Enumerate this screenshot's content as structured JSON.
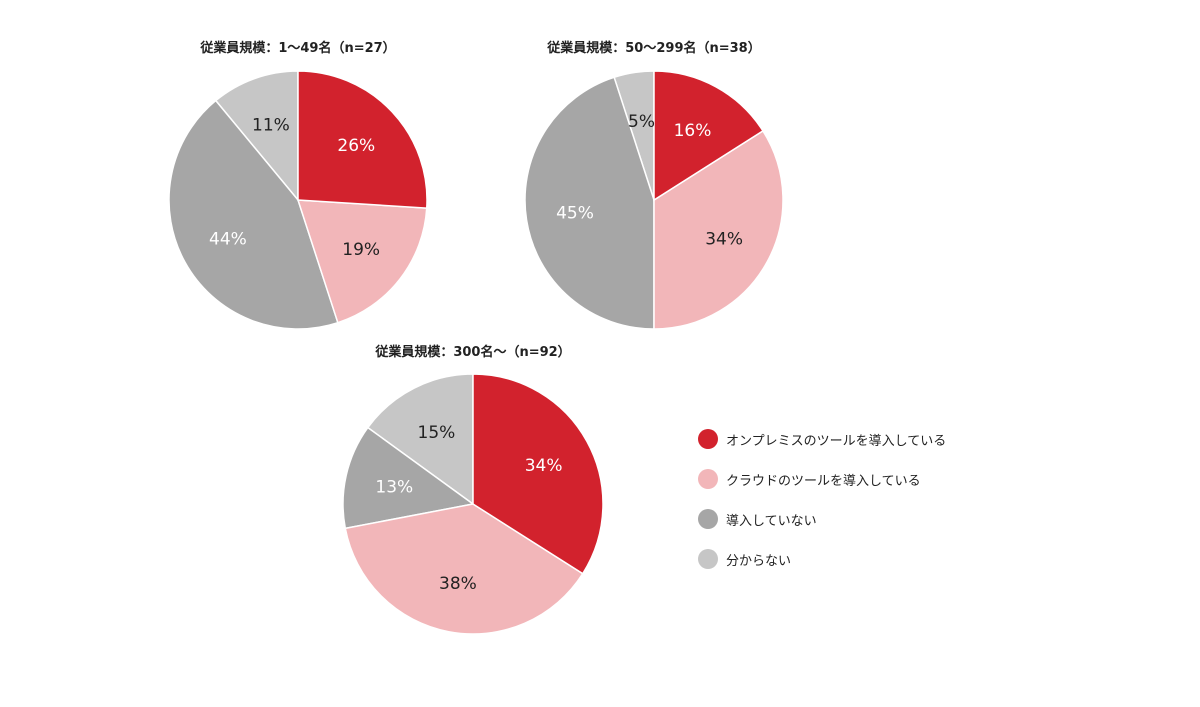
{
  "colors": {
    "onprem": "#D2222D",
    "cloud": "#F2B6B9",
    "not_introduced": "#A6A6A6",
    "unknown": "#C6C6C6"
  },
  "legend": [
    {
      "key": "onprem",
      "label": "オンプレミスのツールを導入している"
    },
    {
      "key": "cloud",
      "label": "クラウドのツールを導入している"
    },
    {
      "key": "not_introduced",
      "label": "導入していない"
    },
    {
      "key": "unknown",
      "label": "分からない"
    }
  ],
  "chart_data": [
    {
      "type": "pie",
      "title": "従業員規模：1〜49名（n=27）",
      "categories": [
        "オンプレミスのツールを導入している",
        "クラウドのツールを導入している",
        "導入していない",
        "分からない"
      ],
      "values": [
        26,
        19,
        44,
        11
      ],
      "labels": [
        "26%",
        "19%",
        "44%",
        "11%"
      ]
    },
    {
      "type": "pie",
      "title": "従業員規模：50〜299名（n=38）",
      "categories": [
        "オンプレミスのツールを導入している",
        "クラウドのツールを導入している",
        "導入していない",
        "分からない"
      ],
      "values": [
        16,
        34,
        45,
        5
      ],
      "labels": [
        "16%",
        "34%",
        "45%",
        "5%"
      ]
    },
    {
      "type": "pie",
      "title": "従業員規模：300名〜（n=92）",
      "categories": [
        "オンプレミスのツールを導入している",
        "クラウドのツールを導入している",
        "導入していない",
        "分からない"
      ],
      "values": [
        34,
        38,
        13,
        15
      ],
      "labels": [
        "34%",
        "38%",
        "13%",
        "15%"
      ]
    }
  ]
}
